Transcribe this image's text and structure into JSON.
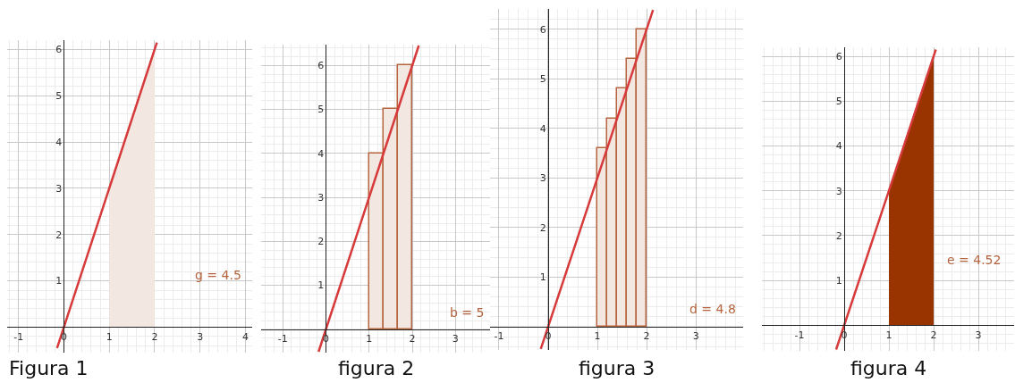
{
  "chart_data": [
    {
      "type": "area",
      "title": "Figura 1",
      "xlim": [
        -1.25,
        4.15
      ],
      "ylim": [
        -0.55,
        6.2
      ],
      "xticks": [
        -1,
        0,
        1,
        2,
        3,
        4
      ],
      "yticks": [
        1,
        2,
        3,
        4,
        5,
        6
      ],
      "grid": true,
      "annotations": [
        "g = 4.5"
      ],
      "series": [
        {
          "x": [
            1,
            2
          ],
          "values": [
            3,
            6
          ],
          "color": "#f3e7e1"
        },
        {
          "type": "line",
          "x": [
            -0.15,
            2.05
          ],
          "values": [
            -0.45,
            6.15
          ],
          "color": "#d63a3a"
        }
      ]
    },
    {
      "type": "bar",
      "title": "figura 2",
      "xlim": [
        -1.5,
        3.8
      ],
      "ylim": [
        -0.53,
        6.47
      ],
      "xticks": [
        -1,
        0,
        1,
        2,
        3
      ],
      "yticks": [
        1,
        2,
        3,
        4,
        5,
        6
      ],
      "grid": true,
      "annotations": [
        "b = 5"
      ],
      "series": [
        {
          "x": [
            1.1667,
            1.5,
            1.8333
          ],
          "values": [
            4,
            5,
            6
          ],
          "color": "#f3e7e1"
        },
        {
          "type": "line",
          "x": [
            -0.17,
            2.15
          ],
          "values": [
            -0.51,
            6.45
          ],
          "color": "#d63a3a"
        }
      ]
    },
    {
      "type": "bar",
      "title": "figura 3",
      "xlim": [
        -1.18,
        3.96
      ],
      "ylim": [
        -0.47,
        6.41
      ],
      "xticks": [
        -1,
        0,
        1,
        2,
        3
      ],
      "yticks": [
        1,
        2,
        3,
        4,
        5,
        6
      ],
      "grid": true,
      "annotations": [
        "d = 4.8"
      ],
      "series": [
        {
          "x": [
            1.1,
            1.3,
            1.5,
            1.7,
            1.9
          ],
          "values": [
            3.6,
            4.2,
            4.8,
            5.4,
            6
          ],
          "color": "#f3e7e1"
        },
        {
          "type": "line",
          "x": [
            -0.15,
            2.13
          ],
          "values": [
            -0.45,
            6.39
          ],
          "color": "#d63a3a"
        }
      ]
    },
    {
      "type": "area",
      "title": "figura 4",
      "xlim": [
        -1.84,
        3.8
      ],
      "ylim": [
        -0.57,
        6.2
      ],
      "xticks": [
        -1,
        0,
        1,
        2,
        3
      ],
      "yticks": [
        1,
        2,
        3,
        4,
        5,
        6
      ],
      "grid": true,
      "annotations": [
        "e = 4.52"
      ],
      "series": [
        {
          "x": [
            1,
            2
          ],
          "values": [
            3,
            6
          ],
          "color": "#993300"
        },
        {
          "type": "line",
          "x": [
            -0.18,
            2.05
          ],
          "values": [
            -0.54,
            6.15
          ],
          "color": "#d63a3a"
        }
      ]
    }
  ]
}
